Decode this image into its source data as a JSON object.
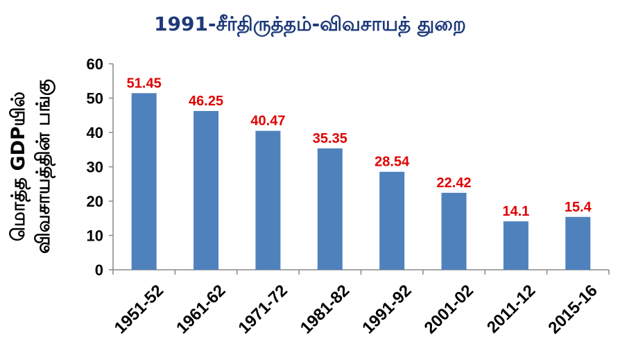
{
  "chart_data": {
    "type": "bar",
    "title": "1991-சீர்திருத்தம்-விவசாயத் துறை",
    "ylabel_line1": "மொத்த GDPயில்",
    "ylabel_line2": "விவசாயத்தின் பங்கு",
    "xlabel": "",
    "categories": [
      "1951-52",
      "1961-62",
      "1971-72",
      "1981-82",
      "1991-92",
      "2001-02",
      "2011-12",
      "2015-16"
    ],
    "values": [
      51.45,
      46.25,
      40.47,
      35.35,
      28.54,
      22.42,
      14.1,
      15.4
    ],
    "data_labels": [
      "51.45",
      "46.25",
      "40.47",
      "35.35",
      "28.54",
      "22.42",
      "14.1",
      "15.4"
    ],
    "ylim": [
      0,
      60
    ],
    "yticks": [
      0,
      10,
      20,
      30,
      40,
      50,
      60
    ],
    "grid": false,
    "legend": "none",
    "colors": {
      "bar": "#4f81bd",
      "data_label": "#e00000",
      "title": "#1f3a7a",
      "axis": "#888888"
    }
  }
}
